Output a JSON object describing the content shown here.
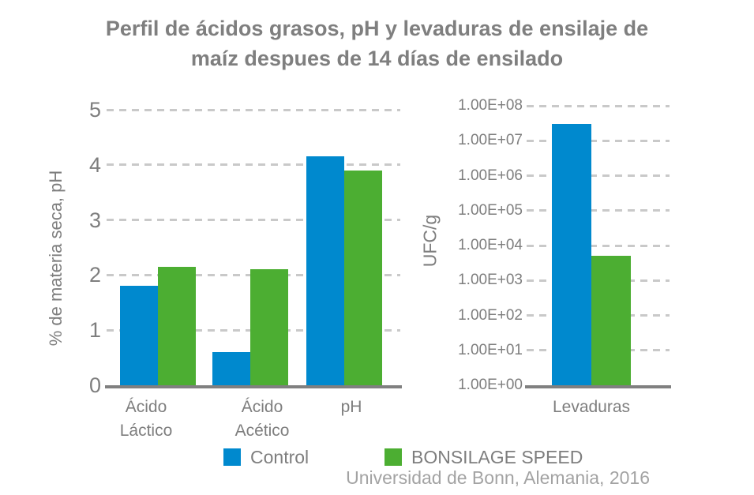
{
  "title": {
    "line1": "Perfil de ácidos grasos, pH y levaduras de ensilaje de",
    "line2": "maíz despues de 14 días de ensilado"
  },
  "chart_data": [
    {
      "type": "bar",
      "categories": [
        "Ácido Láctico",
        "Ácido Acético",
        "pH"
      ],
      "series": [
        {
          "name": "Control",
          "color": "#0089CE",
          "values": [
            1.8,
            0.6,
            4.15
          ]
        },
        {
          "name": "BONSILAGE SPEED",
          "color": "#4CAE32",
          "values": [
            2.15,
            2.1,
            3.9
          ]
        }
      ],
      "ylabel": "% de materia seca, pH",
      "ylim": [
        0,
        5
      ],
      "yticks": [
        0,
        1,
        2,
        3,
        4,
        5
      ],
      "grid": "horizontal-dashed",
      "legend_position": "bottom"
    },
    {
      "type": "bar",
      "yscale": "log",
      "categories": [
        "Levaduras"
      ],
      "series": [
        {
          "name": "Control",
          "color": "#0089CE",
          "values": [
            30000000
          ]
        },
        {
          "name": "BONSILAGE SPEED",
          "color": "#4CAE32",
          "values": [
            5000
          ]
        }
      ],
      "ylabel": "UFC/g",
      "ylim": [
        1,
        100000000
      ],
      "ytick_labels": [
        "1.00E+00",
        "1.00E+01",
        "1.00E+02",
        "1.00E+03",
        "1.00E+04",
        "1.00E+05",
        "1.00E+06",
        "1.00E+07",
        "1.00E+08"
      ],
      "grid": "horizontal-dashed",
      "legend_position": "bottom"
    }
  ],
  "legend": {
    "items": [
      {
        "label": "Control",
        "color": "#0089CE"
      },
      {
        "label": "BONSILAGE SPEED",
        "color": "#4CAE32"
      }
    ]
  },
  "source": "Universidad de Bonn, Alemania, 2016"
}
